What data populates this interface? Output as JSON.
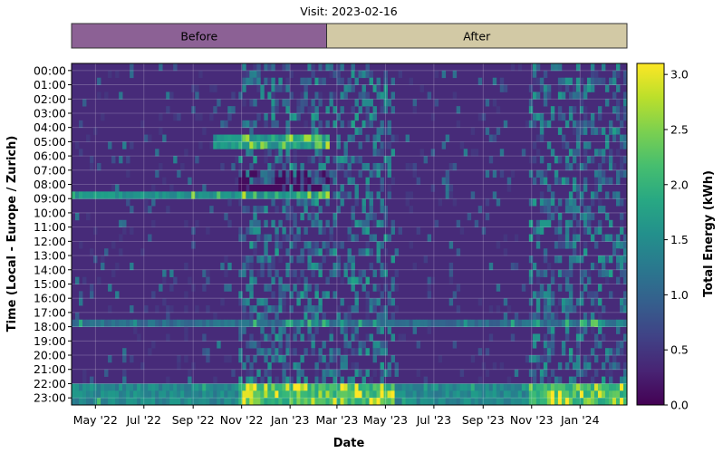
{
  "chart_data": {
    "type": "heatmap",
    "title": "Visit: 2023-02-16",
    "xlabel": "Date",
    "ylabel": "Time (Local - Europe / Zurich)",
    "colorbar_label": "Total Energy (kWh)",
    "colormap": "viridis",
    "zlim": [
      0,
      3.1
    ],
    "colorbar_ticks": [
      "0.0",
      "0.5",
      "1.0",
      "1.5",
      "2.0",
      "2.5",
      "3.0"
    ],
    "colorbar_tick_values": [
      0,
      0.5,
      1.0,
      1.5,
      2.0,
      2.5,
      3.0
    ],
    "xlim": [
      "2022-04-01",
      "2024-02-29"
    ],
    "x_ticks": [
      {
        "label": "May '22",
        "date": "2022-05-01"
      },
      {
        "label": "Jul '22",
        "date": "2022-07-01"
      },
      {
        "label": "Sep '22",
        "date": "2022-09-01"
      },
      {
        "label": "Nov '22",
        "date": "2022-11-01"
      },
      {
        "label": "Jan '23",
        "date": "2023-01-01"
      },
      {
        "label": "Mar '23",
        "date": "2023-03-01"
      },
      {
        "label": "May '23",
        "date": "2023-05-01"
      },
      {
        "label": "Jul '23",
        "date": "2023-07-01"
      },
      {
        "label": "Sep '23",
        "date": "2023-09-01"
      },
      {
        "label": "Nov '23",
        "date": "2023-11-01"
      },
      {
        "label": "Jan '24",
        "date": "2024-01-01"
      }
    ],
    "y_ticks": [
      "00:00",
      "01:00",
      "02:00",
      "03:00",
      "04:00",
      "05:00",
      "06:00",
      "07:00",
      "08:00",
      "09:00",
      "10:00",
      "11:00",
      "12:00",
      "13:00",
      "14:00",
      "15:00",
      "16:00",
      "17:00",
      "18:00",
      "19:00",
      "20:00",
      "21:00",
      "22:00",
      "23:00"
    ],
    "grid": true,
    "periods": [
      {
        "label": "Before",
        "start": "2022-04-01",
        "end": "2023-02-16",
        "color": "#8c6195"
      },
      {
        "label": "After",
        "start": "2023-02-16",
        "end": "2024-02-29",
        "color": "#d2c9a5"
      }
    ]
  }
}
